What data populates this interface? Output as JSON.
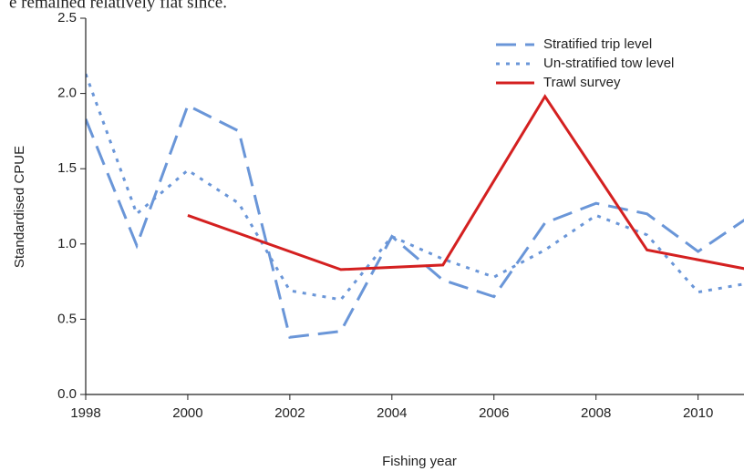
{
  "caption": "e remained relatively flat since.",
  "chart_data": {
    "type": "line",
    "x_label": "Fishing year",
    "y_label": "Standardised CPUE",
    "xlim": [
      1998,
      2010.9
    ],
    "ylim": [
      0,
      2.5
    ],
    "xticks": [
      1998,
      2000,
      2002,
      2004,
      2006,
      2008,
      2010
    ],
    "yticks": [
      {
        "value": 0,
        "label": "0.0"
      },
      {
        "value": 0.5,
        "label": "0.5"
      },
      {
        "value": 1,
        "label": "1.0"
      },
      {
        "value": 1.5,
        "label": "1.5"
      },
      {
        "value": 2,
        "label": "2.0"
      },
      {
        "value": 2.5,
        "label": "2.5"
      }
    ],
    "legend": "top-right",
    "series": [
      {
        "name": "Stratified trip level",
        "color": "#6a96d8",
        "dash": "dashed",
        "x": [
          1998,
          1999,
          2000,
          2001,
          2002,
          2003,
          2004,
          2005,
          2006,
          2007,
          2008,
          2009,
          2010,
          2011
        ],
        "values": [
          1.83,
          0.99,
          1.92,
          1.75,
          0.38,
          0.42,
          1.05,
          0.76,
          0.65,
          1.14,
          1.27,
          1.2,
          0.95,
          1.18
        ]
      },
      {
        "name": "Un-stratified tow level",
        "color": "#6a96d8",
        "dash": "dotted",
        "x": [
          1998,
          1999,
          2000,
          2001,
          2002,
          2003,
          2004,
          2005,
          2006,
          2007,
          2008,
          2009,
          2010,
          2011
        ],
        "values": [
          2.13,
          1.2,
          1.49,
          1.27,
          0.69,
          0.63,
          1.05,
          0.9,
          0.78,
          0.96,
          1.19,
          1.06,
          0.68,
          0.74
        ]
      },
      {
        "name": "Trawl survey",
        "color": "#d42020",
        "dash": "solid",
        "x": [
          2000,
          2003,
          2005,
          2007,
          2009,
          2011
        ],
        "values": [
          1.19,
          0.83,
          0.86,
          1.98,
          0.96,
          0.83
        ]
      }
    ]
  }
}
